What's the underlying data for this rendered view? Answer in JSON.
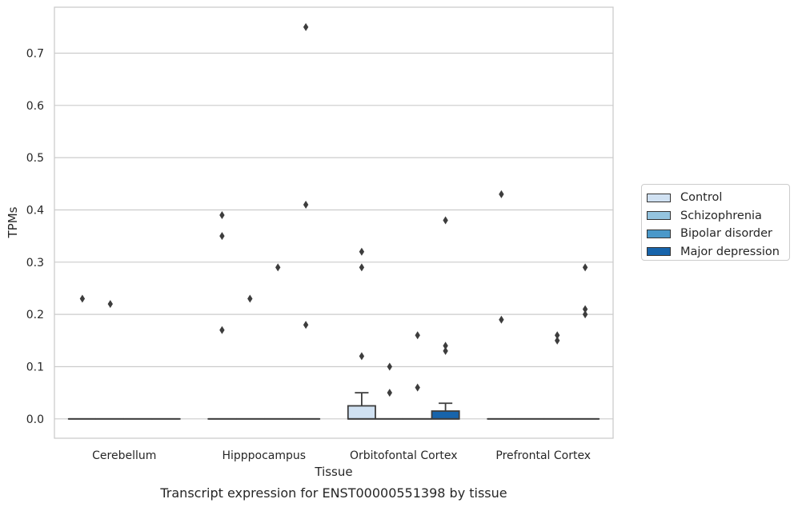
{
  "chart_data": {
    "type": "box",
    "caption": "Transcript expression for ENST00000551398 by tissue",
    "xlabel": "Tissue",
    "ylabel": "TPMs",
    "ylim": [
      -0.037,
      0.788
    ],
    "yticks": [
      "0.0",
      "0.1",
      "0.2",
      "0.3",
      "0.4",
      "0.5",
      "0.6",
      "0.7"
    ],
    "grid": "horizontal",
    "legend_position": "right",
    "categories": [
      "Cerebellum",
      "Hipppocampus",
      "Orbitofontal Cortex",
      "Prefrontal Cortex"
    ],
    "series": [
      {
        "name": "Control",
        "color": "#d0e1f2",
        "boxes": [
          {
            "q1": 0,
            "median": 0,
            "q3": 0,
            "whisker_low": 0,
            "whisker_high": 0,
            "outliers": [
              0.23
            ]
          },
          {
            "q1": 0,
            "median": 0,
            "q3": 0,
            "whisker_low": 0,
            "whisker_high": 0,
            "outliers": [
              0.39,
              0.35,
              0.17
            ]
          },
          {
            "q1": 0,
            "median": 0,
            "q3": 0.025,
            "whisker_low": 0,
            "whisker_high": 0.05,
            "outliers": [
              0.32,
              0.29,
              0.12
            ]
          },
          {
            "q1": 0,
            "median": 0,
            "q3": 0,
            "whisker_low": 0,
            "whisker_high": 0,
            "outliers": [
              0.43,
              0.19
            ]
          }
        ]
      },
      {
        "name": "Schizophrenia",
        "color": "#94c4df",
        "boxes": [
          {
            "q1": 0,
            "median": 0,
            "q3": 0,
            "whisker_low": 0,
            "whisker_high": 0,
            "outliers": [
              0.22
            ]
          },
          {
            "q1": 0,
            "median": 0,
            "q3": 0,
            "whisker_low": 0,
            "whisker_high": 0,
            "outliers": [
              0.23
            ]
          },
          {
            "q1": 0,
            "median": 0,
            "q3": 0,
            "whisker_low": 0,
            "whisker_high": 0,
            "outliers": [
              0.1,
              0.05
            ]
          },
          {
            "q1": 0,
            "median": 0,
            "q3": 0,
            "whisker_low": 0,
            "whisker_high": 0,
            "outliers": []
          }
        ]
      },
      {
        "name": "Bipolar disorder",
        "color": "#4a98c9",
        "boxes": [
          {
            "q1": 0,
            "median": 0,
            "q3": 0,
            "whisker_low": 0,
            "whisker_high": 0,
            "outliers": []
          },
          {
            "q1": 0,
            "median": 0,
            "q3": 0,
            "whisker_low": 0,
            "whisker_high": 0,
            "outliers": [
              0.29
            ]
          },
          {
            "q1": 0,
            "median": 0,
            "q3": 0,
            "whisker_low": 0,
            "whisker_high": 0,
            "outliers": [
              0.16,
              0.06
            ]
          },
          {
            "q1": 0,
            "median": 0,
            "q3": 0,
            "whisker_low": 0,
            "whisker_high": 0,
            "outliers": [
              0.16,
              0.15
            ]
          }
        ]
      },
      {
        "name": "Major depression",
        "color": "#1764ab",
        "boxes": [
          {
            "q1": 0,
            "median": 0,
            "q3": 0,
            "whisker_low": 0,
            "whisker_high": 0,
            "outliers": []
          },
          {
            "q1": 0,
            "median": 0,
            "q3": 0,
            "whisker_low": 0,
            "whisker_high": 0,
            "outliers": [
              0.75,
              0.41,
              0.18
            ]
          },
          {
            "q1": 0,
            "median": 0,
            "q3": 0.015,
            "whisker_low": 0,
            "whisker_high": 0.03,
            "outliers": [
              0.38,
              0.14,
              0.13
            ]
          },
          {
            "q1": 0,
            "median": 0,
            "q3": 0,
            "whisker_low": 0,
            "whisker_high": 0,
            "outliers": [
              0.29,
              0.21,
              0.2
            ]
          }
        ]
      }
    ]
  }
}
